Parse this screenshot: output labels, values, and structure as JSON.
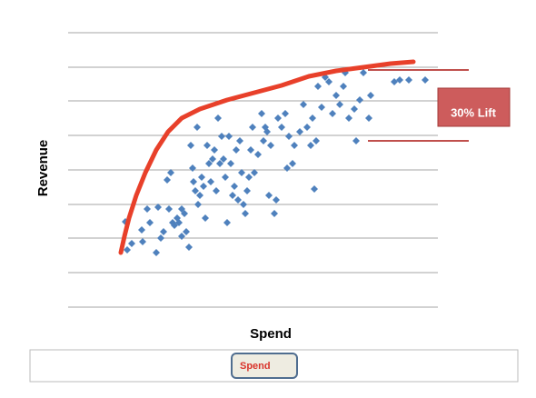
{
  "chart_data": {
    "type": "scatter",
    "xlabel": "Spend",
    "ylabel": "Revenue",
    "xlim": [
      0,
      407
    ],
    "ylim": [
      0,
      302
    ],
    "yticks": [
      0,
      38,
      76,
      113,
      151,
      189,
      227,
      264,
      302
    ],
    "grid": true,
    "legend": "bottom",
    "legend_text_color": "#d9342b",
    "series": [
      {
        "name": "Spend",
        "color": "#4f81bd",
        "x": [
          63,
          65,
          70,
          81,
          82,
          87,
          90,
          97,
          99,
          102,
          105,
          109,
          111,
          113,
          115,
          117,
          120,
          122,
          125,
          125,
          128,
          130,
          133,
          135,
          137,
          138,
          140,
          142,
          143,
          145,
          147,
          149,
          151,
          153,
          155,
          157,
          159,
          161,
          163,
          165,
          167,
          169,
          171,
          173,
          175,
          177,
          179,
          181,
          183,
          185,
          187,
          189,
          191,
          193,
          195,
          197,
          199,
          201,
          203,
          205,
          209,
          213,
          215,
          217,
          219,
          221,
          223,
          227,
          229,
          231,
          235,
          239,
          241,
          243,
          247,
          249,
          255,
          259,
          263,
          267,
          269,
          271,
          273,
          275,
          279,
          283,
          287,
          291,
          295,
          299,
          303,
          305,
          309,
          315,
          317,
          321,
          325,
          331,
          333,
          359,
          365,
          375,
          393
        ],
        "values": [
          94,
          63,
          70,
          85,
          72,
          108,
          93,
          60,
          110,
          76,
          83,
          140,
          108,
          148,
          93,
          90,
          98,
          93,
          108,
          78,
          103,
          83,
          66,
          178,
          153,
          138,
          128,
          198,
          113,
          123,
          143,
          133,
          98,
          178,
          158,
          138,
          163,
          173,
          128,
          208,
          158,
          188,
          163,
          143,
          93,
          188,
          158,
          123,
          133,
          173,
          118,
          183,
          148,
          113,
          103,
          128,
          143,
          173,
          198,
          148,
          168,
          213,
          183,
          198,
          193,
          123,
          178,
          103,
          118,
          208,
          198,
          213,
          153,
          188,
          158,
          178,
          193,
          223,
          198,
          178,
          208,
          130,
          183,
          243,
          220,
          253,
          248,
          213,
          233,
          223,
          243,
          258,
          208,
          218,
          183,
          228,
          258,
          208,
          233,
          248,
          250,
          250,
          250
        ]
      }
    ],
    "curve": {
      "color": "#e8402a",
      "x": [
        58,
        62,
        67,
        75,
        85,
        97,
        110,
        125,
        145,
        175,
        205,
        235,
        265,
        295,
        325,
        355,
        380
      ],
      "values": [
        60,
        78,
        98,
        123,
        148,
        173,
        193,
        208,
        218,
        228,
        236,
        244,
        254,
        260,
        264,
        268,
        270
      ]
    },
    "annotations": [
      {
        "text": "30% Lift"
      }
    ]
  }
}
